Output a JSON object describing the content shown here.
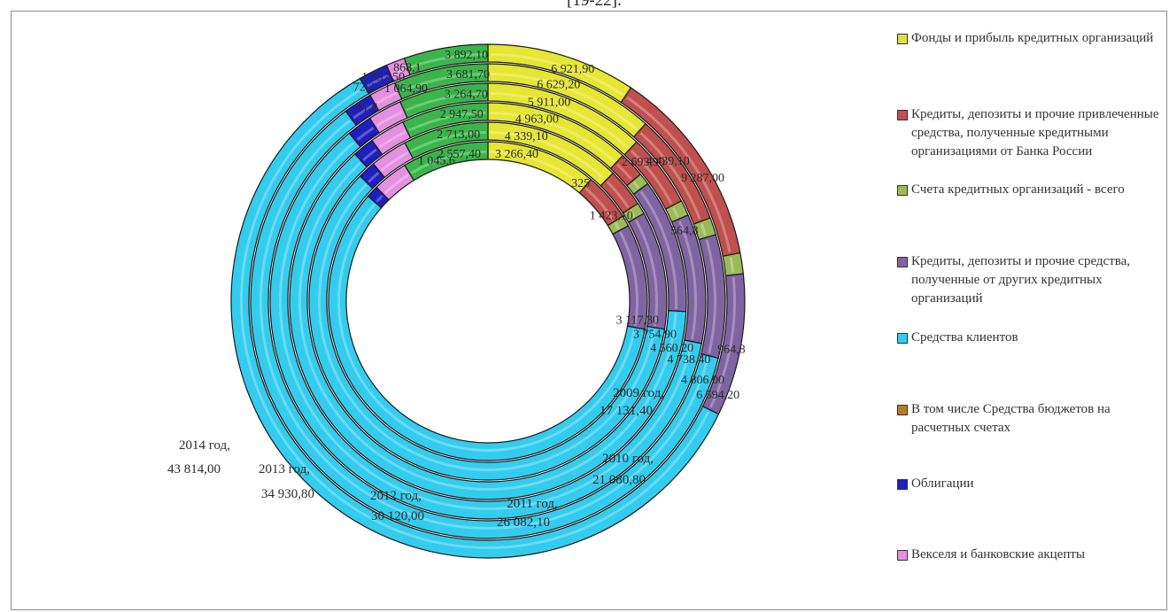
{
  "caption": "[19-22].",
  "chart_data": {
    "type": "doughnut",
    "rings": [
      "2009 год",
      "2010 год",
      "2011 год",
      "2012 год",
      "2013 год",
      "2014 год"
    ],
    "series": [
      {
        "name": "Фонды и прибыль кредитных организаций",
        "color": "#e6e633",
        "values": [
          3266.4,
          4339.1,
          4963.0,
          5911.0,
          6629.2,
          6921.9
        ]
      },
      {
        "name": "Кредиты, депозиты и прочие привлеченные средства, полученные кредитными организациями от Банка России",
        "color": "#c0504d",
        "values": [
          1423.1,
          1233.0,
          866.3,
          2693.9,
          4439.1,
          9287.0
        ]
      },
      {
        "name": "Счета кредитных организаций - всего",
        "color": "#9bbb59",
        "values": [
          325.0,
          368.6,
          399.5,
          564.8,
          681.1,
          964.8
        ]
      },
      {
        "name": "Кредиты, депозиты и прочие средства, полученные от других кредитных организаций",
        "color": "#8064a2",
        "values": [
          3117.3,
          3754.9,
          4560.2,
          4738.4,
          4806.0,
          6594.2
        ]
      },
      {
        "name": "Средства клиентов",
        "color": "#33ccee",
        "values": [
          17131.4,
          21080.8,
          26082.1,
          30120.0,
          34930.8,
          43814.0
        ]
      },
      {
        "name": "В том числе Средства бюджетов на расчетных счетах",
        "color": "#b47d2a",
        "values": [
          0,
          0,
          0,
          0,
          0,
          0
        ]
      },
      {
        "name": "Облигации",
        "color": "#1f1fbf",
        "values": [
          358.8,
          565.8,
          732.6,
          919.8,
          1124.4,
          1357.5
        ]
      },
      {
        "name": "Векселя и банковские акцепты",
        "color": "#e58fe0",
        "values": [
          1045.6,
          1189.1,
          1204.7,
          1250.6,
          1064.9,
          868.1
        ]
      },
      {
        "name": "Фонды и прибыль кредитных организаций (продолжение)",
        "color": "#39b54a",
        "values": [
          2557.4,
          2713.0,
          2947.5,
          3264.7,
          3681.7,
          3892.1
        ]
      }
    ],
    "data_labels": [
      {
        "ring": "2014 год",
        "texts": [
          "6 921,90",
          "9 287,00",
          "964,8",
          "6 594,20",
          "1 357,50",
          "868,1",
          "3 892,10",
          "72,2"
        ]
      },
      {
        "ring": "2013 год",
        "texts": [
          "6 629,20",
          "4 439,10",
          "4 806,00",
          "1 064,90",
          "3 681,70",
          "41,6"
        ]
      },
      {
        "ring": "2012 год",
        "texts": [
          "5 911,00",
          "2 693,90",
          "564,8",
          "4 738,40",
          "3 264,70"
        ]
      },
      {
        "ring": "2011 год",
        "texts": [
          "4 963,00",
          "4 560,20",
          "2 947,50"
        ]
      },
      {
        "ring": "2010 год",
        "texts": [
          "4 339,10",
          "3 754,90",
          "2 713,00"
        ]
      },
      {
        "ring": "2009 год",
        "texts": [
          "3 266,40",
          "325",
          "1 423,10",
          "3 117,30",
          "2 557,40",
          "1 045,6"
        ]
      }
    ],
    "category_labels": [
      {
        "ring": "2014 год",
        "line1": "2014 год,",
        "line2": "43 814,00"
      },
      {
        "ring": "2013 год",
        "line1": "2013 год,",
        "line2": "34 930,80"
      },
      {
        "ring": "2012 год",
        "line1": "2012 год,",
        "line2": "30 120,00"
      },
      {
        "ring": "2011 год",
        "line1": "2011 год,",
        "line2": "26 082,10"
      },
      {
        "ring": "2010 год",
        "line1": "2010 год,",
        "line2": "21 080,80"
      },
      {
        "ring": "2009 год",
        "line1": "2009 год,",
        "line2": "17 131,40"
      }
    ],
    "legend_position": "right"
  },
  "legend": [
    {
      "label": "Фонды и прибыль кредитных организаций",
      "color": "#d6e04a"
    },
    {
      "label": "Кредиты, депозиты и прочие привлеченные средства, полученные кредитными организациями от Банка России",
      "color": "#c0504d"
    },
    {
      "label": "Счета кредитных организаций - всего",
      "color": "#9bbb59"
    },
    {
      "label": "Кредиты, депозиты и прочие средства, полученные от других кредитных организаций",
      "color": "#8064a2"
    },
    {
      "label": "Средства клиентов",
      "color": "#33ccee"
    },
    {
      "label": "В том числе Средства бюджетов на расчетных счетах",
      "color": "#b47d2a"
    },
    {
      "label": "Облигации",
      "color": "#1f1fbf"
    },
    {
      "label": "Векселя и банковские акцепты",
      "color": "#e58fe0"
    }
  ]
}
